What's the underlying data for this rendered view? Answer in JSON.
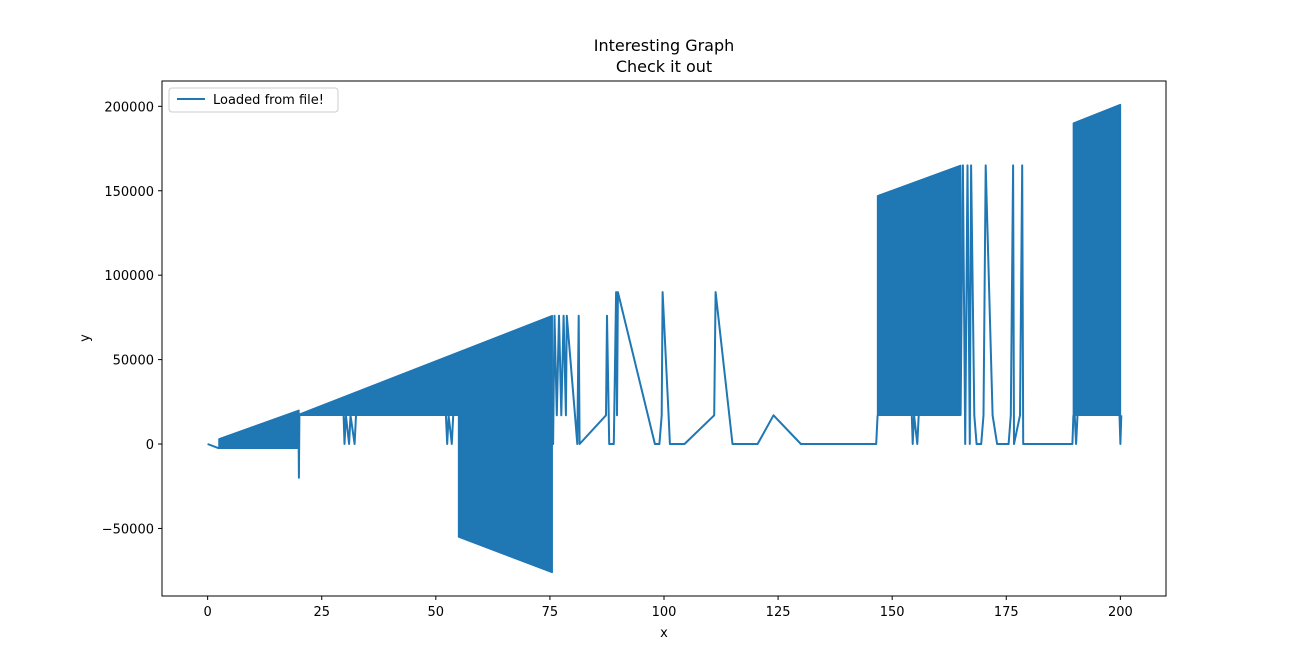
{
  "chart_data": {
    "type": "line",
    "title": "Interesting Graph",
    "subtitle": "Check it out",
    "xlabel": "x",
    "ylabel": "y",
    "xlim": [
      -10,
      210
    ],
    "ylim": [
      -90000,
      215000
    ],
    "xticks": [
      0,
      25,
      50,
      75,
      100,
      125,
      150,
      175,
      200
    ],
    "yticks": [
      -50000,
      0,
      50000,
      100000,
      150000,
      200000
    ],
    "grid": false,
    "legend_position": "top-left",
    "series": [
      {
        "name": "Loaded from file!",
        "color": "#1f77b4",
        "segments": [
          {
            "mode": "line",
            "points": [
              [
                0,
                0
              ],
              [
                2.5,
                -2500
              ]
            ]
          },
          {
            "mode": "band",
            "x": [
              2.5,
              20
            ],
            "low": [
              -2500,
              -2500
            ],
            "high": [
              3000,
              20000
            ]
          },
          {
            "mode": "line",
            "points": [
              [
                19.9,
                17000
              ],
              [
                20,
                -20000
              ],
              [
                20.1,
                17000
              ]
            ]
          },
          {
            "mode": "band",
            "x": [
              20,
              75.5
            ],
            "low": [
              17000,
              17000
            ],
            "high": [
              17500,
              76000
            ]
          },
          {
            "mode": "band",
            "x": [
              55,
              75.5
            ],
            "low": [
              -55000,
              -76000
            ],
            "high": [
              17000,
              17000
            ]
          },
          {
            "mode": "line",
            "points": [
              [
                29.8,
                17000
              ],
              [
                30,
                0
              ],
              [
                30.3,
                17000
              ],
              [
                31,
                0
              ],
              [
                31.3,
                17000
              ],
              [
                32.2,
                0
              ],
              [
                32.5,
                17000
              ]
            ]
          },
          {
            "mode": "line",
            "points": [
              [
                52.2,
                17000
              ],
              [
                52.5,
                0
              ],
              [
                52.8,
                17000
              ],
              [
                53.5,
                0
              ],
              [
                53.8,
                17000
              ]
            ]
          },
          {
            "mode": "line",
            "points": [
              [
                75.5,
                17000
              ],
              [
                75.7,
                0
              ],
              [
                76,
                76000
              ],
              [
                76.5,
                17000
              ],
              [
                77,
                76000
              ],
              [
                77.5,
                17000
              ],
              [
                78,
                76000
              ],
              [
                78.5,
                17000
              ],
              [
                78.7,
                76000
              ],
              [
                80.5,
                17000
              ],
              [
                81,
                0
              ],
              [
                81.3,
                76000
              ],
              [
                81.5,
                0
              ],
              [
                87.3,
                17000
              ],
              [
                87.5,
                76000
              ],
              [
                88,
                0
              ],
              [
                89,
                0
              ],
              [
                89.5,
                90000
              ],
              [
                89.7,
                17000
              ],
              [
                89.9,
                90000
              ],
              [
                98,
                0
              ],
              [
                99,
                0
              ],
              [
                99.5,
                17000
              ],
              [
                99.7,
                90000
              ],
              [
                101,
                17000
              ],
              [
                101.3,
                0
              ],
              [
                104.5,
                0
              ],
              [
                111,
                17000
              ],
              [
                111.3,
                90000
              ],
              [
                115,
                0
              ],
              [
                120.5,
                0
              ],
              [
                124,
                17000
              ],
              [
                130,
                0
              ],
              [
                146.5,
                0
              ],
              [
                146.8,
                17000
              ]
            ]
          },
          {
            "mode": "band",
            "x": [
              146.8,
              165
            ],
            "low": [
              17000,
              17000
            ],
            "high": [
              147000,
              165000
            ]
          },
          {
            "mode": "line",
            "points": [
              [
                154.3,
                17000
              ],
              [
                154.5,
                0
              ],
              [
                154.8,
                17000
              ],
              [
                155.5,
                0
              ],
              [
                155.8,
                17000
              ]
            ]
          },
          {
            "mode": "line",
            "points": [
              [
                165,
                17000
              ],
              [
                165.5,
                165000
              ],
              [
                166,
                0
              ],
              [
                166.5,
                165000
              ],
              [
                167,
                0
              ],
              [
                167.3,
                165000
              ],
              [
                168,
                17000
              ],
              [
                168.5,
                0
              ],
              [
                169.5,
                0
              ],
              [
                170,
                17000
              ],
              [
                170.5,
                165000
              ],
              [
                172,
                17000
              ],
              [
                173,
                0
              ],
              [
                175.5,
                0
              ],
              [
                176,
                17000
              ],
              [
                176.5,
                165000
              ],
              [
                176.7,
                0
              ],
              [
                178,
                17000
              ],
              [
                178.5,
                165000
              ],
              [
                178.7,
                0
              ],
              [
                189.5,
                0
              ],
              [
                189.7,
                17000
              ]
            ]
          },
          {
            "mode": "band",
            "x": [
              189.7,
              200
            ],
            "low": [
              17000,
              17000
            ],
            "high": [
              190000,
              201000
            ]
          },
          {
            "mode": "line",
            "points": [
              [
                190,
                17000
              ],
              [
                190.3,
                0
              ],
              [
                190.6,
                17000
              ]
            ]
          },
          {
            "mode": "line",
            "points": [
              [
                199.8,
                17000
              ],
              [
                200,
                0
              ],
              [
                200.2,
                17000
              ]
            ]
          }
        ]
      }
    ]
  }
}
